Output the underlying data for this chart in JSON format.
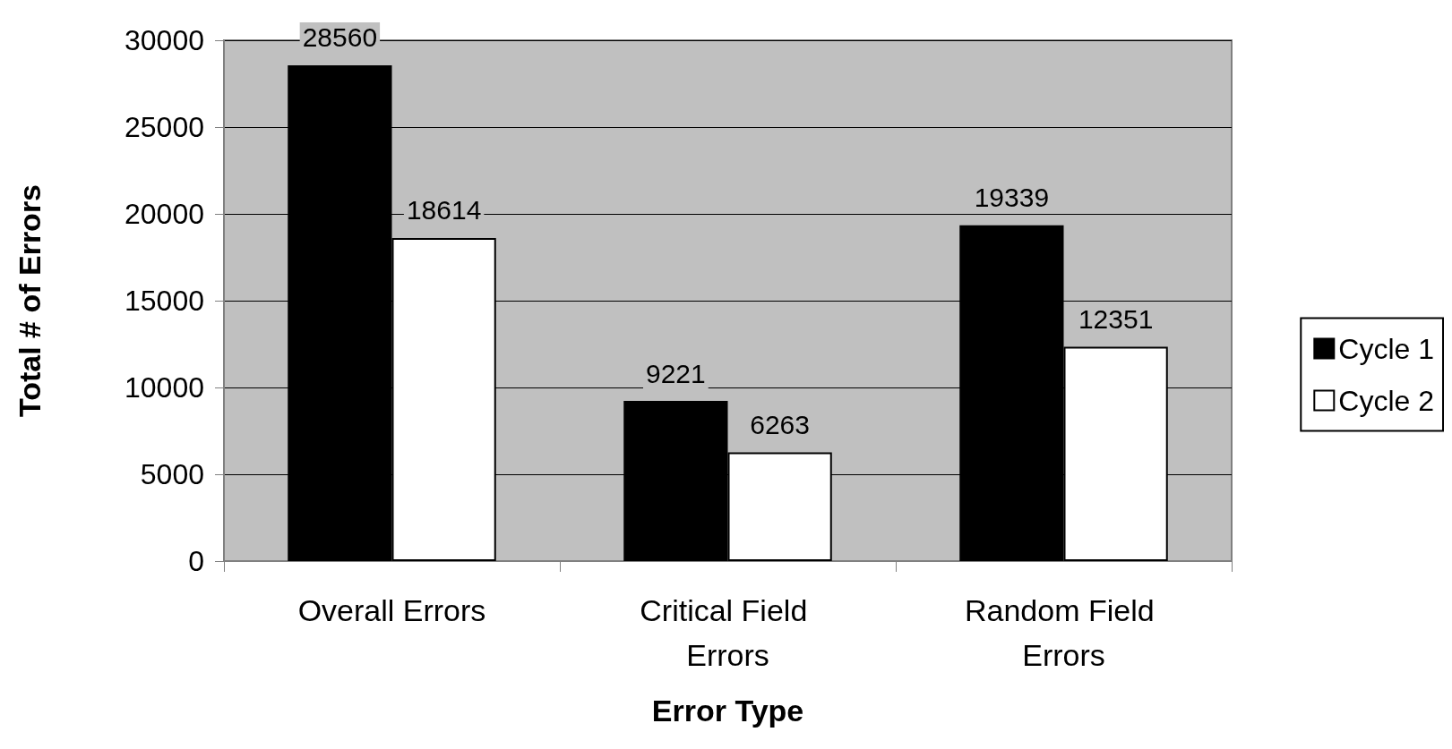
{
  "chart_data": {
    "type": "bar",
    "xlabel": "Error Type",
    "ylabel": "Total # of Errors",
    "categories": [
      "Overall Errors",
      "Critical Field Errors",
      "Random Field Errors"
    ],
    "series": [
      {
        "name": "Cycle 1",
        "color": "#000000",
        "values": [
          28560,
          9221,
          19339
        ]
      },
      {
        "name": "Cycle 2",
        "color": "#ffffff",
        "values": [
          18614,
          6263,
          12351
        ]
      }
    ],
    "ylim": [
      0,
      30000
    ],
    "yticks": [
      0,
      5000,
      10000,
      15000,
      20000,
      25000,
      30000
    ],
    "grid": "y",
    "legend": "right",
    "data_labels": true
  }
}
